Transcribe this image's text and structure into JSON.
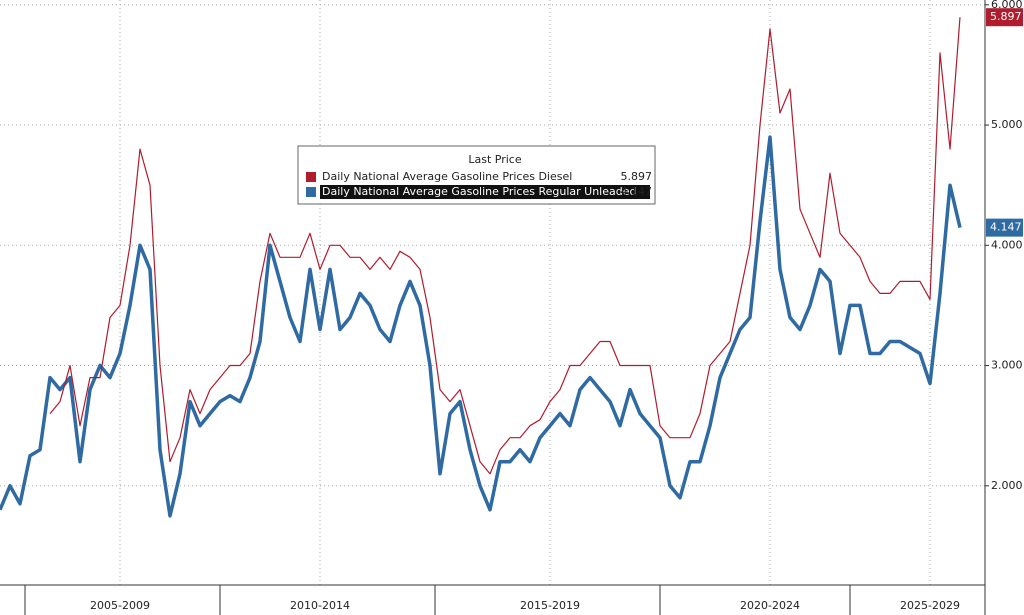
{
  "chart_data": {
    "type": "line",
    "legend_title": "Last Price",
    "categories": [
      null,
      null,
      null,
      null,
      null,
      null,
      null,
      null,
      null,
      null,
      null,
      null,
      "2005-2009",
      null,
      null,
      null,
      null,
      null,
      null,
      null,
      null,
      null,
      null,
      null,
      null,
      null,
      null,
      null,
      null,
      null,
      null,
      null,
      "2010-2014",
      null,
      null,
      null,
      null,
      null,
      null,
      null,
      null,
      null,
      null,
      null,
      null,
      null,
      null,
      null,
      null,
      null,
      null,
      null,
      null,
      null,
      null,
      "2015-2019",
      null,
      null,
      null,
      null,
      null,
      null,
      null,
      null,
      null,
      null,
      null,
      null,
      null,
      null,
      null,
      null,
      null,
      null,
      null,
      null,
      null,
      "2020-2024",
      null,
      null,
      null,
      null,
      null,
      null,
      null,
      null,
      null,
      null,
      null,
      null,
      null,
      null,
      null,
      "2025-2029",
      null,
      null,
      null
    ],
    "series": [
      {
        "name": "Daily National Average Gasoline Prices Diesel",
        "color": "#b01c2e",
        "values": [
          null,
          null,
          null,
          null,
          null,
          2.6,
          2.7,
          3.0,
          2.5,
          2.9,
          2.9,
          3.4,
          3.5,
          4.0,
          4.8,
          4.5,
          3.0,
          2.2,
          2.4,
          2.8,
          2.6,
          2.8,
          2.9,
          3.0,
          3.0,
          3.1,
          3.7,
          4.1,
          3.9,
          3.9,
          3.9,
          4.1,
          3.8,
          4.0,
          4.0,
          3.9,
          3.9,
          3.8,
          3.9,
          3.8,
          3.95,
          3.9,
          3.8,
          3.4,
          2.8,
          2.7,
          2.8,
          2.5,
          2.2,
          2.1,
          2.3,
          2.4,
          2.4,
          2.5,
          2.55,
          2.7,
          2.8,
          3.0,
          3.0,
          3.1,
          3.2,
          3.2,
          3.0,
          3.0,
          3.0,
          3.0,
          2.5,
          2.4,
          2.4,
          2.4,
          2.6,
          3.0,
          3.1,
          3.2,
          3.6,
          4.0,
          5.0,
          5.8,
          5.1,
          5.3,
          4.3,
          4.1,
          3.9,
          4.6,
          4.1,
          4.0,
          3.9,
          3.7,
          3.6,
          3.6,
          3.7,
          3.7,
          3.7,
          3.55,
          5.6,
          4.8,
          5.897
        ]
      },
      {
        "name": "Daily National Average Gasoline Prices Regular Unleaded",
        "color": "#2f6aa3",
        "values": [
          1.8,
          2.0,
          1.85,
          2.25,
          2.3,
          2.9,
          2.8,
          2.9,
          2.2,
          2.8,
          3.0,
          2.9,
          3.1,
          3.5,
          4.0,
          3.8,
          2.3,
          1.75,
          2.1,
          2.7,
          2.5,
          2.6,
          2.7,
          2.75,
          2.7,
          2.9,
          3.2,
          4.0,
          3.7,
          3.4,
          3.2,
          3.8,
          3.3,
          3.8,
          3.3,
          3.4,
          3.6,
          3.5,
          3.3,
          3.2,
          3.5,
          3.7,
          3.5,
          3.0,
          2.1,
          2.6,
          2.7,
          2.3,
          2.0,
          1.8,
          2.2,
          2.2,
          2.3,
          2.2,
          2.4,
          2.5,
          2.6,
          2.5,
          2.8,
          2.9,
          2.8,
          2.7,
          2.5,
          2.8,
          2.6,
          2.5,
          2.4,
          2.0,
          1.9,
          2.2,
          2.2,
          2.5,
          2.9,
          3.1,
          3.3,
          3.4,
          4.2,
          4.9,
          3.8,
          3.4,
          3.3,
          3.5,
          3.8,
          3.7,
          3.1,
          3.5,
          3.5,
          3.1,
          3.1,
          3.2,
          3.2,
          3.15,
          3.1,
          2.85,
          3.6,
          4.5,
          4.147
        ]
      }
    ],
    "ylim": [
      1.175,
      6.04
    ],
    "yticks": [
      {
        "value": 2,
        "label": "2.000"
      },
      {
        "value": 3,
        "label": "3.000"
      },
      {
        "value": 4,
        "label": "4.000"
      },
      {
        "value": 5,
        "label": "5.000"
      },
      {
        "value": 6,
        "label": "6.000"
      }
    ],
    "grid": true
  }
}
